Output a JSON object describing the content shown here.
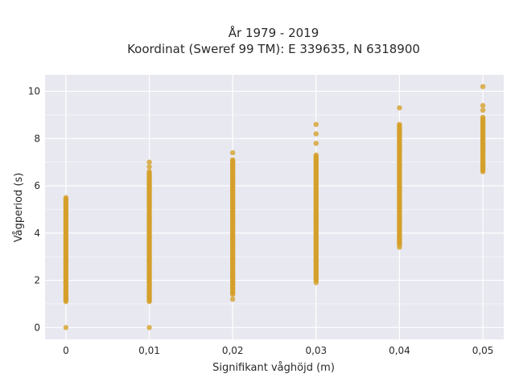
{
  "chart_data": {
    "type": "scatter",
    "title_line1": "År 1979 - 2019",
    "title_line2": "Koordinat (Sweref 99 TM): E 339635, N 6318900",
    "xlabel": "Signifikant våghöjd (m)",
    "ylabel": "Vågperiod (s)",
    "xlim": [
      -0.0025,
      0.0525
    ],
    "ylim": [
      -0.5,
      10.7
    ],
    "x_ticks": [
      0,
      0.01,
      0.02,
      0.03,
      0.04,
      0.05
    ],
    "x_tick_labels": [
      "0",
      "0,01",
      "0,02",
      "0,03",
      "0,04",
      "0,05"
    ],
    "y_ticks": [
      0,
      2,
      4,
      6,
      8,
      10
    ],
    "y_tick_labels": [
      "0",
      "2",
      "4",
      "6",
      "8",
      "10"
    ],
    "grid": true,
    "legend": "none",
    "colors": {
      "points": "#d4a02a",
      "plot_bg": "#e8e8f0",
      "grid": "#ffffff"
    },
    "columns": [
      {
        "x": 0,
        "ymin": 1.1,
        "ymax": 5.5,
        "extra_y": [
          0.0
        ]
      },
      {
        "x": 0.01,
        "ymin": 1.1,
        "ymax": 6.6,
        "extra_y": [
          0.0,
          6.8,
          7.0
        ]
      },
      {
        "x": 0.02,
        "ymin": 1.4,
        "ymax": 7.1,
        "extra_y": [
          1.2,
          7.4
        ]
      },
      {
        "x": 0.03,
        "ymin": 2.0,
        "ymax": 7.3,
        "extra_y": [
          1.9,
          7.8,
          8.2,
          8.6
        ]
      },
      {
        "x": 0.04,
        "ymin": 3.5,
        "ymax": 8.6,
        "extra_y": [
          3.4,
          9.3
        ]
      },
      {
        "x": 0.05,
        "ymin": 6.6,
        "ymax": 8.9,
        "extra_y": [
          9.2,
          9.4,
          10.2
        ]
      }
    ]
  }
}
